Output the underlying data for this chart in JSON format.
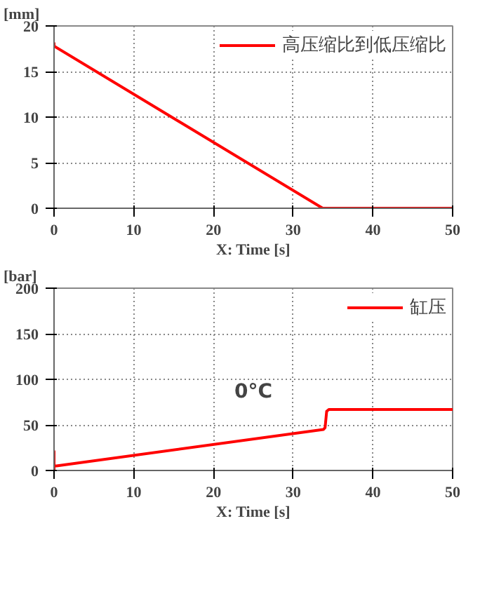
{
  "chart_data": [
    {
      "type": "line",
      "ylabel": "[mm]",
      "xlabel": "X: Time [s]",
      "xlim": [
        0,
        50
      ],
      "ylim": [
        0,
        20
      ],
      "xticks": [
        0,
        10,
        20,
        30,
        40,
        50
      ],
      "yticks": [
        0,
        5,
        10,
        15,
        20
      ],
      "grid": true,
      "legend": "top right",
      "line_style": "solid",
      "series": [
        {
          "name": "高压缩比到低压缩比",
          "color": "#ff0000",
          "x": [
            0,
            0,
            33.7,
            50
          ],
          "values": [
            18.2,
            17.8,
            0,
            0
          ]
        }
      ]
    },
    {
      "type": "line",
      "ylabel": "[bar]",
      "xlabel": "X: Time [s]",
      "xlim": [
        0,
        50
      ],
      "ylim": [
        0,
        200
      ],
      "xticks": [
        0,
        10,
        20,
        30,
        40,
        50
      ],
      "yticks": [
        0,
        50,
        100,
        150,
        200
      ],
      "grid": true,
      "legend": "top right",
      "line_style": "solid",
      "annotations": [
        "0°C"
      ],
      "series": [
        {
          "name": "缸压",
          "color": "#ff0000",
          "x": [
            0,
            0,
            0,
            0.3,
            33.8,
            34,
            34.2,
            34.5,
            50
          ],
          "values": [
            0,
            21,
            5,
            5,
            45,
            47,
            65,
            67,
            67
          ]
        }
      ]
    }
  ]
}
